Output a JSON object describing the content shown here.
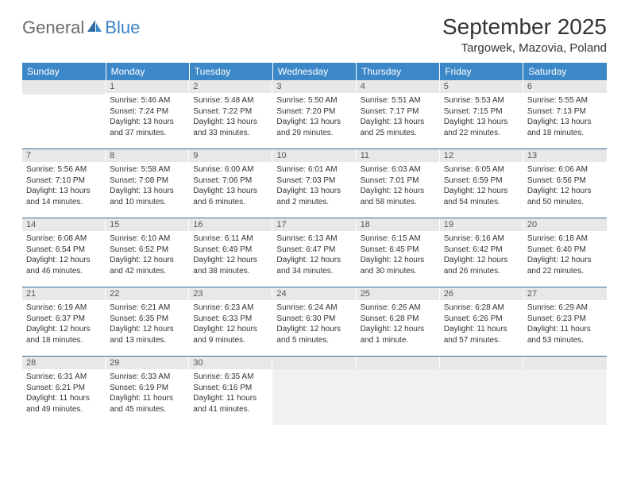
{
  "logo": {
    "general": "General",
    "blue": "Blue"
  },
  "title": "September 2025",
  "location": "Targowek, Mazovia, Poland",
  "colors": {
    "header_bg": "#3b87c8",
    "header_text": "#ffffff",
    "row_border": "#2f6ca3",
    "daynum_bg": "#e8e8e8",
    "trailing_bg": "#f1f1f1",
    "logo_gray": "#6b6b6b",
    "logo_blue": "#3b82c4"
  },
  "weekdays": [
    "Sunday",
    "Monday",
    "Tuesday",
    "Wednesday",
    "Thursday",
    "Friday",
    "Saturday"
  ],
  "weeks": [
    [
      {
        "n": "",
        "lines": []
      },
      {
        "n": "1",
        "lines": [
          "Sunrise: 5:46 AM",
          "Sunset: 7:24 PM",
          "Daylight: 13 hours",
          "and 37 minutes."
        ]
      },
      {
        "n": "2",
        "lines": [
          "Sunrise: 5:48 AM",
          "Sunset: 7:22 PM",
          "Daylight: 13 hours",
          "and 33 minutes."
        ]
      },
      {
        "n": "3",
        "lines": [
          "Sunrise: 5:50 AM",
          "Sunset: 7:20 PM",
          "Daylight: 13 hours",
          "and 29 minutes."
        ]
      },
      {
        "n": "4",
        "lines": [
          "Sunrise: 5:51 AM",
          "Sunset: 7:17 PM",
          "Daylight: 13 hours",
          "and 25 minutes."
        ]
      },
      {
        "n": "5",
        "lines": [
          "Sunrise: 5:53 AM",
          "Sunset: 7:15 PM",
          "Daylight: 13 hours",
          "and 22 minutes."
        ]
      },
      {
        "n": "6",
        "lines": [
          "Sunrise: 5:55 AM",
          "Sunset: 7:13 PM",
          "Daylight: 13 hours",
          "and 18 minutes."
        ]
      }
    ],
    [
      {
        "n": "7",
        "lines": [
          "Sunrise: 5:56 AM",
          "Sunset: 7:10 PM",
          "Daylight: 13 hours",
          "and 14 minutes."
        ]
      },
      {
        "n": "8",
        "lines": [
          "Sunrise: 5:58 AM",
          "Sunset: 7:08 PM",
          "Daylight: 13 hours",
          "and 10 minutes."
        ]
      },
      {
        "n": "9",
        "lines": [
          "Sunrise: 6:00 AM",
          "Sunset: 7:06 PM",
          "Daylight: 13 hours",
          "and 6 minutes."
        ]
      },
      {
        "n": "10",
        "lines": [
          "Sunrise: 6:01 AM",
          "Sunset: 7:03 PM",
          "Daylight: 13 hours",
          "and 2 minutes."
        ]
      },
      {
        "n": "11",
        "lines": [
          "Sunrise: 6:03 AM",
          "Sunset: 7:01 PM",
          "Daylight: 12 hours",
          "and 58 minutes."
        ]
      },
      {
        "n": "12",
        "lines": [
          "Sunrise: 6:05 AM",
          "Sunset: 6:59 PM",
          "Daylight: 12 hours",
          "and 54 minutes."
        ]
      },
      {
        "n": "13",
        "lines": [
          "Sunrise: 6:06 AM",
          "Sunset: 6:56 PM",
          "Daylight: 12 hours",
          "and 50 minutes."
        ]
      }
    ],
    [
      {
        "n": "14",
        "lines": [
          "Sunrise: 6:08 AM",
          "Sunset: 6:54 PM",
          "Daylight: 12 hours",
          "and 46 minutes."
        ]
      },
      {
        "n": "15",
        "lines": [
          "Sunrise: 6:10 AM",
          "Sunset: 6:52 PM",
          "Daylight: 12 hours",
          "and 42 minutes."
        ]
      },
      {
        "n": "16",
        "lines": [
          "Sunrise: 6:11 AM",
          "Sunset: 6:49 PM",
          "Daylight: 12 hours",
          "and 38 minutes."
        ]
      },
      {
        "n": "17",
        "lines": [
          "Sunrise: 6:13 AM",
          "Sunset: 6:47 PM",
          "Daylight: 12 hours",
          "and 34 minutes."
        ]
      },
      {
        "n": "18",
        "lines": [
          "Sunrise: 6:15 AM",
          "Sunset: 6:45 PM",
          "Daylight: 12 hours",
          "and 30 minutes."
        ]
      },
      {
        "n": "19",
        "lines": [
          "Sunrise: 6:16 AM",
          "Sunset: 6:42 PM",
          "Daylight: 12 hours",
          "and 26 minutes."
        ]
      },
      {
        "n": "20",
        "lines": [
          "Sunrise: 6:18 AM",
          "Sunset: 6:40 PM",
          "Daylight: 12 hours",
          "and 22 minutes."
        ]
      }
    ],
    [
      {
        "n": "21",
        "lines": [
          "Sunrise: 6:19 AM",
          "Sunset: 6:37 PM",
          "Daylight: 12 hours",
          "and 18 minutes."
        ]
      },
      {
        "n": "22",
        "lines": [
          "Sunrise: 6:21 AM",
          "Sunset: 6:35 PM",
          "Daylight: 12 hours",
          "and 13 minutes."
        ]
      },
      {
        "n": "23",
        "lines": [
          "Sunrise: 6:23 AM",
          "Sunset: 6:33 PM",
          "Daylight: 12 hours",
          "and 9 minutes."
        ]
      },
      {
        "n": "24",
        "lines": [
          "Sunrise: 6:24 AM",
          "Sunset: 6:30 PM",
          "Daylight: 12 hours",
          "and 5 minutes."
        ]
      },
      {
        "n": "25",
        "lines": [
          "Sunrise: 6:26 AM",
          "Sunset: 6:28 PM",
          "Daylight: 12 hours",
          "and 1 minute."
        ]
      },
      {
        "n": "26",
        "lines": [
          "Sunrise: 6:28 AM",
          "Sunset: 6:26 PM",
          "Daylight: 11 hours",
          "and 57 minutes."
        ]
      },
      {
        "n": "27",
        "lines": [
          "Sunrise: 6:29 AM",
          "Sunset: 6:23 PM",
          "Daylight: 11 hours",
          "and 53 minutes."
        ]
      }
    ],
    [
      {
        "n": "28",
        "lines": [
          "Sunrise: 6:31 AM",
          "Sunset: 6:21 PM",
          "Daylight: 11 hours",
          "and 49 minutes."
        ]
      },
      {
        "n": "29",
        "lines": [
          "Sunrise: 6:33 AM",
          "Sunset: 6:19 PM",
          "Daylight: 11 hours",
          "and 45 minutes."
        ]
      },
      {
        "n": "30",
        "lines": [
          "Sunrise: 6:35 AM",
          "Sunset: 6:16 PM",
          "Daylight: 11 hours",
          "and 41 minutes."
        ]
      },
      {
        "n": "",
        "lines": [],
        "trailing": true
      },
      {
        "n": "",
        "lines": [],
        "trailing": true
      },
      {
        "n": "",
        "lines": [],
        "trailing": true
      },
      {
        "n": "",
        "lines": [],
        "trailing": true
      }
    ]
  ]
}
